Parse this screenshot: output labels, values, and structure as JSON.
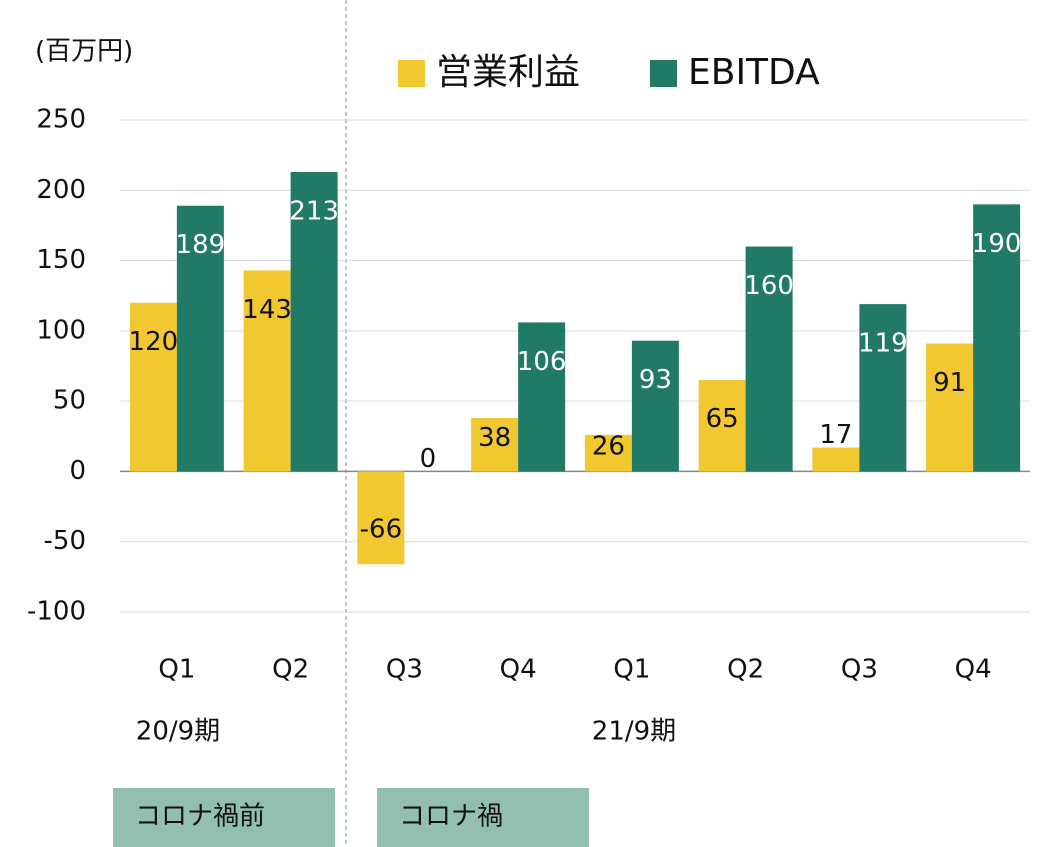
{
  "chart_data": {
    "type": "bar",
    "unit_label": "(百万円)",
    "categories": [
      "Q1",
      "Q2",
      "Q3",
      "Q4",
      "Q1",
      "Q2",
      "Q3",
      "Q4"
    ],
    "series": [
      {
        "name": "営業利益",
        "color": "#f2c830",
        "values": [
          120,
          143,
          -66,
          38,
          26,
          65,
          17,
          91
        ]
      },
      {
        "name": "EBITDA",
        "color": "#217a66",
        "values": [
          189,
          213,
          0,
          106,
          93,
          160,
          119,
          190
        ]
      }
    ],
    "ylim": [
      -100,
      250
    ],
    "yticks": [
      -100,
      -50,
      0,
      50,
      100,
      150,
      200,
      250
    ],
    "grid": true,
    "groups": [
      "20/9期",
      "21/9期"
    ],
    "annotations": [
      "コロナ禍前",
      "コロナ禍"
    ]
  }
}
